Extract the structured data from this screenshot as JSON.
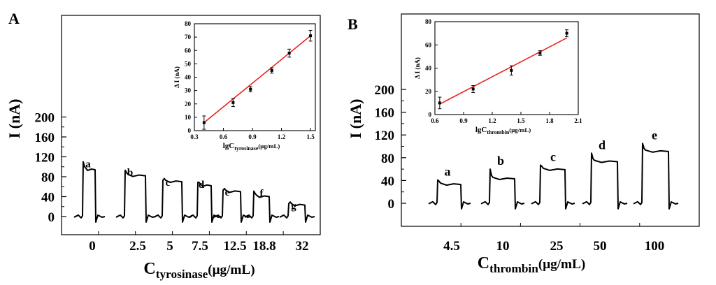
{
  "chart_data": [
    {
      "panel_label": "A",
      "type": "line",
      "title": "",
      "ylabel": "I  (nA)",
      "xlabel_main": "C",
      "xlabel_sub": "tyrosinase",
      "xlabel_unit": "(μg/mL)",
      "ylim": [
        -10,
        200
      ],
      "yticks": [
        "200",
        "160",
        "120",
        "80",
        "40",
        "0"
      ],
      "categories": [
        "0",
        "2.5",
        "5",
        "7.5",
        "12.5",
        "18.8",
        "32"
      ],
      "step_labels": [
        "a",
        "b",
        "c",
        "d",
        "e",
        "f",
        "g"
      ],
      "steady_current_nA": [
        94,
        82,
        70,
        62,
        50,
        40,
        23
      ],
      "peak_current_nA": [
        110,
        93,
        73,
        69,
        53,
        51,
        26
      ],
      "inset": {
        "type": "scatter",
        "xlabel_main": "lgC",
        "xlabel_sub": "tyrosinase",
        "xlabel_unit": "(μg/mL)",
        "ylabel": "Δ I   (nA)",
        "xlim": [
          0.3,
          1.55
        ],
        "ylim": [
          0,
          80
        ],
        "xticks": [
          "0.3",
          "0.6",
          "0.9",
          "1.2",
          "1.5"
        ],
        "yticks": [
          "0",
          "10",
          "20",
          "30",
          "40",
          "50",
          "60",
          "70",
          "80"
        ],
        "x": [
          0.4,
          0.7,
          0.88,
          1.1,
          1.28,
          1.5
        ],
        "y": [
          6,
          21,
          31,
          45,
          58,
          71
        ],
        "error": [
          5,
          3,
          2,
          2,
          3,
          4
        ],
        "fit_line": {
          "x": [
            0.4,
            1.5
          ],
          "y": [
            6,
            71
          ],
          "color": "#e8231e"
        }
      }
    },
    {
      "panel_label": "B",
      "type": "line",
      "title": "",
      "ylabel": "I   (nA)",
      "xlabel_main": "C",
      "xlabel_sub": "thrombin",
      "xlabel_unit": "(μg/mL)",
      "ylim": [
        -20,
        200
      ],
      "yticks": [
        "200",
        "160",
        "120",
        "80",
        "40",
        "0"
      ],
      "categories": [
        "4.5",
        "10",
        "25",
        "50",
        "100"
      ],
      "step_labels": [
        "a",
        "b",
        "c",
        "d",
        "e"
      ],
      "steady_current_nA": [
        33,
        43,
        59,
        73,
        91
      ],
      "peak_current_nA": [
        41,
        60,
        67,
        88,
        105
      ],
      "inset": {
        "type": "scatter",
        "xlabel_main": "lgC",
        "xlabel_sub": "thrombin",
        "xlabel_unit": "(μg/mL)",
        "ylabel": "Δ I   (nA)",
        "xlim": [
          0.6,
          2.1
        ],
        "ylim": [
          0,
          80
        ],
        "xticks": [
          "0.6",
          "0.9",
          "1.2",
          "1.5",
          "1.8",
          "2.1"
        ],
        "yticks": [
          "0",
          "20",
          "40",
          "60",
          "80"
        ],
        "x": [
          0.65,
          1.0,
          1.4,
          1.7,
          1.98
        ],
        "y": [
          10,
          22,
          38,
          53,
          70
        ],
        "error": [
          5,
          3,
          4,
          2,
          3
        ],
        "fit_line": {
          "x": [
            0.65,
            1.98
          ],
          "y": [
            9,
            66
          ],
          "color": "#e8231e"
        }
      }
    }
  ]
}
